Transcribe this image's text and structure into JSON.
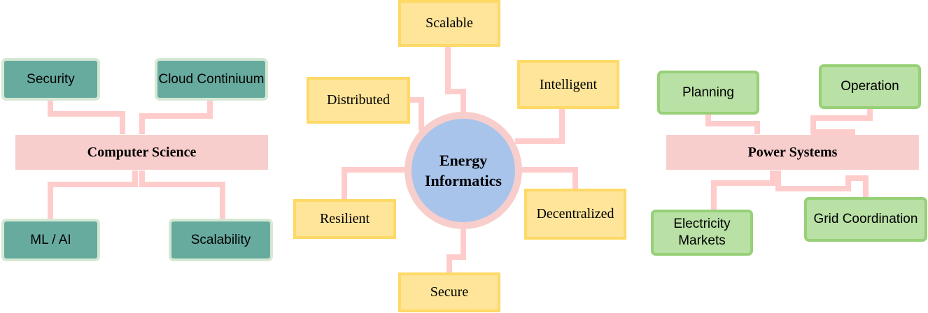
{
  "colors": {
    "connector": "#ffcccc",
    "teal_fill": "#67ab9f",
    "teal_border": "#d5e8d4",
    "green_fill": "#b9e0a5",
    "green_border": "#97d077",
    "yellow_fill": "#ffe599",
    "yellow_border": "#ffd966",
    "hub_fill": "#f8cecc",
    "center_fill": "#a9c4eb"
  },
  "computer_science": {
    "title": "Computer Science",
    "items": [
      "Security",
      "Cloud Continiuum",
      "ML / AI",
      "Scalability"
    ]
  },
  "energy_informatics": {
    "title": "Energy Informatics",
    "items": [
      "Scalable",
      "Distributed",
      "Intelligent",
      "Resilient",
      "Decentralized",
      "Secure"
    ]
  },
  "power_systems": {
    "title": "Power Systems",
    "items": [
      "Planning",
      "Operation",
      "Electricity Markets",
      "Grid Coordination"
    ]
  }
}
